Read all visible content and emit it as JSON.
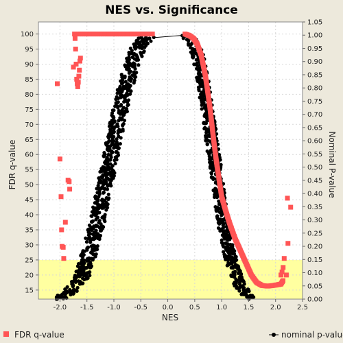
{
  "chart_data": {
    "type": "scatter",
    "title": "NES vs. Significance",
    "xlabel": "NES",
    "ylabel_left": "FDR q-value",
    "ylabel_right": "Nominal P-value",
    "xlim": [
      -2.4,
      2.5
    ],
    "ylim_left": [
      12,
      104
    ],
    "ylim_right": [
      0.0,
      1.05
    ],
    "x_ticks": [
      "-2.0",
      "-1.5",
      "-1.0",
      "-0.5",
      "0.0",
      "0.5",
      "1.0",
      "1.5",
      "2.0",
      "2.5"
    ],
    "y_left_ticks": [
      "15",
      "20",
      "25",
      "30",
      "35",
      "40",
      "45",
      "50",
      "55",
      "60",
      "65",
      "70",
      "75",
      "80",
      "85",
      "90",
      "95",
      "100"
    ],
    "y_right_ticks": [
      "0.00",
      "0.05",
      "0.10",
      "0.15",
      "0.20",
      "0.25",
      "0.30",
      "0.35",
      "0.40",
      "0.45",
      "0.50",
      "0.55",
      "0.60",
      "0.65",
      "0.70",
      "0.75",
      "0.80",
      "0.85",
      "0.90",
      "0.95",
      "1.00",
      "1.05"
    ],
    "highlight_region": {
      "y_left_from": 12,
      "y_left_to": 25,
      "color": "#ffffa0"
    },
    "grid": true,
    "legend_placement": "bottom",
    "series": [
      {
        "name": "FDR q-value",
        "axis": "left",
        "color": "#ff5555",
        "marker": "square",
        "points": [
          [
            -2.05,
            83.5
          ],
          [
            -2.0,
            58.5
          ],
          [
            -1.98,
            46
          ],
          [
            -1.97,
            35
          ],
          [
            -1.96,
            29.5
          ],
          [
            -1.94,
            29.2
          ],
          [
            -1.93,
            25.5
          ],
          [
            -1.9,
            37.5
          ],
          [
            -1.85,
            51.5
          ],
          [
            -1.83,
            51
          ],
          [
            -1.82,
            48.5
          ],
          [
            -1.75,
            89
          ],
          [
            -1.73,
            100
          ],
          [
            -1.72,
            98.5
          ],
          [
            -1.71,
            95
          ],
          [
            -1.7,
            90
          ],
          [
            -1.69,
            85
          ],
          [
            -1.68,
            83.5
          ],
          [
            -1.67,
            82.5
          ],
          [
            -1.66,
            84
          ],
          [
            -1.65,
            86
          ],
          [
            -1.64,
            88
          ],
          [
            -1.63,
            91
          ],
          [
            -1.62,
            92
          ]
        ],
        "flat_left": {
          "x_from": -1.65,
          "x_to": -0.28,
          "y": 100
        },
        "curve_right": [
          [
            0.32,
            100
          ],
          [
            0.4,
            99.5
          ],
          [
            0.48,
            98.5
          ],
          [
            0.55,
            96.5
          ],
          [
            0.62,
            93
          ],
          [
            0.7,
            86
          ],
          [
            0.78,
            76
          ],
          [
            0.85,
            65
          ],
          [
            0.9,
            58
          ],
          [
            0.95,
            52
          ],
          [
            1.0,
            46
          ],
          [
            1.08,
            41
          ],
          [
            1.15,
            37
          ],
          [
            1.25,
            32
          ],
          [
            1.35,
            28
          ],
          [
            1.45,
            24
          ],
          [
            1.55,
            20
          ],
          [
            1.65,
            17.5
          ],
          [
            1.75,
            16.5
          ],
          [
            1.85,
            16.3
          ],
          [
            1.95,
            16.5
          ],
          [
            2.05,
            16.8
          ],
          [
            2.1,
            17
          ],
          [
            2.15,
            18.5
          ]
        ],
        "right_outliers": [
          [
            2.1,
            20
          ],
          [
            2.12,
            21
          ],
          [
            2.14,
            22.5
          ],
          [
            2.16,
            25.5
          ],
          [
            2.2,
            20
          ],
          [
            2.22,
            45.5
          ],
          [
            2.23,
            30.5
          ],
          [
            2.28,
            42.5
          ]
        ]
      },
      {
        "name": "nominal p-value",
        "axis": "right",
        "color": "#000000",
        "marker": "circle",
        "left_band": [
          [
            -2.05,
            0.0
          ],
          [
            -1.85,
            0.02
          ],
          [
            -1.6,
            0.08
          ],
          [
            -1.45,
            0.18
          ],
          [
            -1.3,
            0.3
          ],
          [
            -1.15,
            0.45
          ],
          [
            -1.0,
            0.6
          ],
          [
            -0.85,
            0.75
          ],
          [
            -0.7,
            0.87
          ],
          [
            -0.55,
            0.95
          ],
          [
            -0.4,
            0.99
          ],
          [
            -0.3,
            1.0
          ]
        ],
        "connector": [
          [
            -0.3,
            0.99
          ],
          [
            0.32,
            1.0
          ]
        ],
        "right_band": [
          [
            0.32,
            1.0
          ],
          [
            0.45,
            0.98
          ],
          [
            0.55,
            0.93
          ],
          [
            0.65,
            0.83
          ],
          [
            0.75,
            0.69
          ],
          [
            0.85,
            0.55
          ],
          [
            0.95,
            0.4
          ],
          [
            1.05,
            0.27
          ],
          [
            1.15,
            0.17
          ],
          [
            1.25,
            0.1
          ],
          [
            1.35,
            0.05
          ],
          [
            1.45,
            0.02
          ],
          [
            1.55,
            0.0
          ]
        ]
      }
    ]
  }
}
